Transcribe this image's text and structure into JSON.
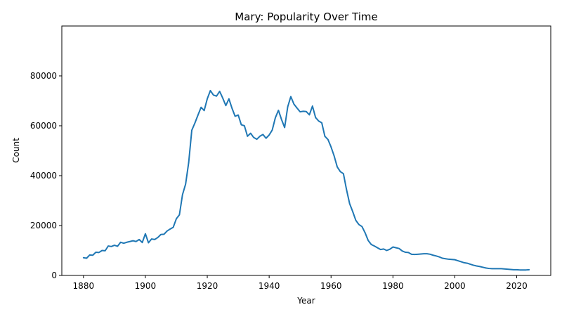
{
  "chart_data": {
    "type": "line",
    "title": "Mary: Popularity Over Time",
    "xlabel": "Year",
    "ylabel": "Count",
    "xlim": [
      1873,
      2031
    ],
    "ylim": [
      0,
      100000
    ],
    "x_ticks": [
      1880,
      1900,
      1920,
      1940,
      1960,
      1980,
      2000,
      2020
    ],
    "x_tick_labels": [
      "1880",
      "1900",
      "1920",
      "1940",
      "1960",
      "1980",
      "2000",
      "2020"
    ],
    "y_ticks": [
      0,
      20000,
      40000,
      60000,
      80000
    ],
    "y_tick_labels": [
      "0",
      "20000",
      "40000",
      "60000",
      "80000"
    ],
    "grid": false,
    "legend": "none",
    "series": [
      {
        "color": "#1f77b4",
        "x": [
          1880,
          1881,
          1882,
          1883,
          1884,
          1885,
          1886,
          1887,
          1888,
          1889,
          1890,
          1891,
          1892,
          1893,
          1894,
          1895,
          1896,
          1897,
          1898,
          1899,
          1900,
          1901,
          1902,
          1903,
          1904,
          1905,
          1906,
          1907,
          1908,
          1909,
          1910,
          1911,
          1912,
          1913,
          1914,
          1915,
          1916,
          1917,
          1918,
          1919,
          1920,
          1921,
          1922,
          1923,
          1924,
          1925,
          1926,
          1927,
          1928,
          1929,
          1930,
          1931,
          1932,
          1933,
          1934,
          1935,
          1936,
          1937,
          1938,
          1939,
          1940,
          1941,
          1942,
          1943,
          1944,
          1945,
          1946,
          1947,
          1948,
          1949,
          1950,
          1951,
          1952,
          1953,
          1954,
          1955,
          1956,
          1957,
          1958,
          1959,
          1960,
          1961,
          1962,
          1963,
          1964,
          1965,
          1966,
          1967,
          1968,
          1969,
          1970,
          1971,
          1972,
          1973,
          1974,
          1975,
          1976,
          1977,
          1978,
          1979,
          1980,
          1981,
          1982,
          1983,
          1984,
          1985,
          1986,
          1987,
          1988,
          1989,
          1990,
          1991,
          1992,
          1993,
          1994,
          1995,
          1996,
          1997,
          1998,
          1999,
          2000,
          2001,
          2002,
          2003,
          2004,
          2005,
          2006,
          2007,
          2008,
          2009,
          2010,
          2011,
          2012,
          2013,
          2014,
          2015,
          2016,
          2017,
          2018,
          2019,
          2020,
          2021,
          2022,
          2023,
          2024
        ],
        "values": [
          7100,
          6900,
          8200,
          8100,
          9300,
          9200,
          10000,
          9900,
          11800,
          11600,
          12100,
          11700,
          13300,
          12900,
          13300,
          13600,
          13900,
          13600,
          14400,
          13200,
          16700,
          13100,
          14600,
          14400,
          15200,
          16400,
          16500,
          17800,
          18600,
          19300,
          22700,
          24300,
          32400,
          36600,
          45300,
          58200,
          61100,
          64300,
          67400,
          66100,
          70800,
          74100,
          72300,
          71900,
          73800,
          71100,
          68100,
          70800,
          67000,
          63800,
          64300,
          60400,
          60000,
          55800,
          57000,
          55300,
          54600,
          55800,
          56500,
          55000,
          56300,
          58300,
          63200,
          66200,
          62500,
          59300,
          67600,
          71700,
          68700,
          67100,
          65600,
          65800,
          65700,
          64400,
          67900,
          63300,
          61900,
          61200,
          55800,
          54500,
          51500,
          47900,
          43500,
          41600,
          40800,
          34400,
          28800,
          25600,
          22100,
          20400,
          19600,
          17100,
          14000,
          12400,
          11800,
          11100,
          10400,
          10600,
          10000,
          10500,
          11400,
          11100,
          10800,
          9800,
          9300,
          9200,
          8500,
          8400,
          8500,
          8600,
          8700,
          8700,
          8500,
          8100,
          7800,
          7400,
          6900,
          6700,
          6500,
          6400,
          6300,
          5900,
          5500,
          5100,
          4900,
          4500,
          4100,
          3800,
          3600,
          3300,
          3000,
          2800,
          2700,
          2700,
          2700,
          2700,
          2600,
          2500,
          2400,
          2300,
          2300,
          2200,
          2200,
          2200,
          2300
        ]
      }
    ]
  }
}
